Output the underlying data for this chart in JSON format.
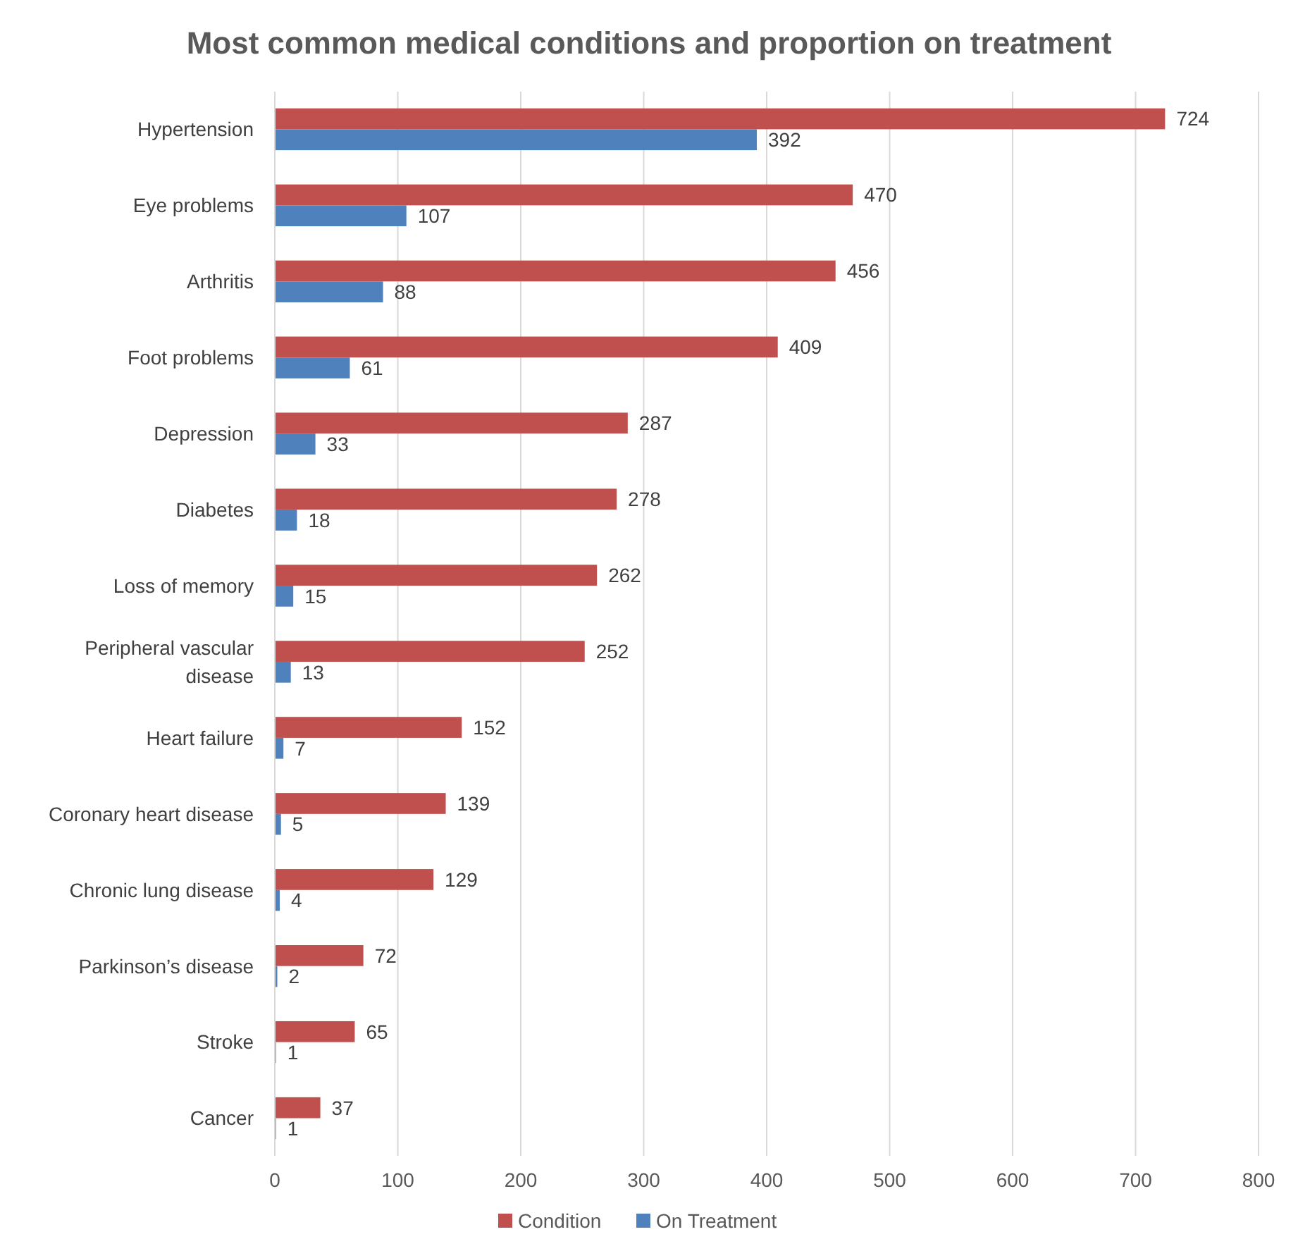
{
  "chart_data": {
    "type": "bar",
    "orientation": "horizontal",
    "title": "Most common medical conditions and proportion on treatment",
    "categories": [
      "Hypertension",
      "Eye problems",
      "Arthritis",
      "Foot problems",
      "Depression",
      "Diabetes",
      "Loss of memory",
      "Peripheral vascular disease",
      "Heart failure",
      "Coronary heart disease",
      "Chronic lung disease",
      "Parkinson’s disease",
      "Stroke",
      "Cancer"
    ],
    "series": [
      {
        "name": "Condition",
        "color": "#c0504d",
        "values": [
          724,
          470,
          456,
          409,
          287,
          278,
          262,
          252,
          152,
          139,
          129,
          72,
          65,
          37
        ]
      },
      {
        "name": "On Treatment",
        "color": "#4f81bd",
        "values": [
          392,
          107,
          88,
          61,
          33,
          18,
          15,
          13,
          7,
          5,
          4,
          2,
          1,
          1
        ]
      }
    ],
    "xlim": [
      0,
      800
    ],
    "xticks": [
      0,
      100,
      200,
      300,
      400,
      500,
      600,
      700,
      800
    ],
    "grid": "x",
    "legend": "bottom",
    "data_labels": true
  }
}
